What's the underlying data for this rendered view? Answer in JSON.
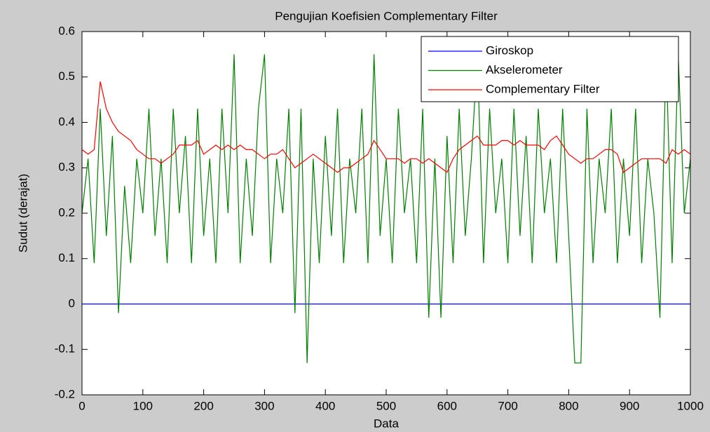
{
  "chart_data": {
    "type": "line",
    "title": "Pengujian Koefisien Complementary Filter",
    "xlabel": "Data",
    "ylabel": "Sudut (derajat)",
    "xlim": [
      0,
      1000
    ],
    "ylim": [
      -0.2,
      0.6
    ],
    "xticks": [
      0,
      100,
      200,
      300,
      400,
      500,
      600,
      700,
      800,
      900,
      1000
    ],
    "yticks": [
      -0.2,
      -0.1,
      0,
      0.1,
      0.2,
      0.3,
      0.4,
      0.5,
      0.6
    ],
    "grid": false,
    "legend": "northeast",
    "x": [
      0,
      10,
      20,
      30,
      40,
      50,
      60,
      70,
      80,
      90,
      100,
      110,
      120,
      130,
      140,
      150,
      160,
      170,
      180,
      190,
      200,
      210,
      220,
      230,
      240,
      250,
      260,
      270,
      280,
      290,
      300,
      310,
      320,
      330,
      340,
      350,
      360,
      370,
      380,
      390,
      400,
      410,
      420,
      430,
      440,
      450,
      460,
      470,
      480,
      490,
      500,
      510,
      520,
      530,
      540,
      550,
      560,
      570,
      580,
      590,
      600,
      610,
      620,
      630,
      640,
      650,
      660,
      670,
      680,
      690,
      700,
      710,
      720,
      730,
      740,
      750,
      760,
      770,
      780,
      790,
      800,
      810,
      820,
      830,
      840,
      850,
      860,
      870,
      880,
      890,
      900,
      910,
      920,
      930,
      940,
      950,
      960,
      970,
      980,
      990,
      1000
    ],
    "series": [
      {
        "name": "Giroskop",
        "color": "#0000ff",
        "x": [
          0,
          1000
        ],
        "values": [
          0,
          0
        ]
      },
      {
        "name": "Akselerometer",
        "color": "#008000",
        "values": [
          0.2,
          0.32,
          0.09,
          0.43,
          0.15,
          0.37,
          -0.02,
          0.26,
          0.09,
          0.32,
          0.2,
          0.43,
          0.15,
          0.32,
          0.09,
          0.43,
          0.2,
          0.37,
          0.09,
          0.43,
          0.15,
          0.32,
          0.09,
          0.43,
          0.2,
          0.55,
          0.09,
          0.32,
          0.15,
          0.43,
          0.55,
          0.09,
          0.32,
          0.2,
          0.43,
          -0.02,
          0.43,
          -0.13,
          0.32,
          0.09,
          0.37,
          0.15,
          0.43,
          0.09,
          0.32,
          0.2,
          0.43,
          0.09,
          0.55,
          0.15,
          0.32,
          0.09,
          0.43,
          0.2,
          0.32,
          0.09,
          0.43,
          -0.03,
          0.32,
          -0.03,
          0.37,
          0.09,
          0.43,
          0.15,
          0.32,
          0.55,
          0.09,
          0.43,
          0.2,
          0.32,
          0.09,
          0.43,
          0.15,
          0.37,
          0.09,
          0.43,
          0.2,
          0.32,
          0.09,
          0.43,
          0.15,
          -0.13,
          -0.13,
          0.43,
          0.09,
          0.32,
          0.2,
          0.43,
          0.09,
          0.32,
          0.15,
          0.43,
          0.09,
          0.32,
          0.2,
          -0.03,
          0.55,
          0.09,
          0.55,
          0.2,
          0.32
        ]
      },
      {
        "name": "Complementary Filter",
        "color": "#ff0000",
        "values": [
          0.34,
          0.33,
          0.34,
          0.49,
          0.43,
          0.4,
          0.38,
          0.37,
          0.36,
          0.34,
          0.33,
          0.32,
          0.32,
          0.31,
          0.32,
          0.33,
          0.35,
          0.35,
          0.35,
          0.36,
          0.33,
          0.34,
          0.35,
          0.34,
          0.35,
          0.34,
          0.35,
          0.34,
          0.34,
          0.33,
          0.32,
          0.33,
          0.33,
          0.34,
          0.32,
          0.3,
          0.31,
          0.32,
          0.33,
          0.32,
          0.31,
          0.3,
          0.29,
          0.3,
          0.3,
          0.31,
          0.32,
          0.33,
          0.36,
          0.34,
          0.32,
          0.32,
          0.32,
          0.31,
          0.32,
          0.32,
          0.31,
          0.32,
          0.31,
          0.3,
          0.29,
          0.32,
          0.34,
          0.35,
          0.36,
          0.37,
          0.35,
          0.35,
          0.35,
          0.36,
          0.36,
          0.35,
          0.36,
          0.35,
          0.35,
          0.35,
          0.34,
          0.36,
          0.37,
          0.35,
          0.33,
          0.32,
          0.31,
          0.32,
          0.32,
          0.33,
          0.34,
          0.34,
          0.33,
          0.29,
          0.3,
          0.31,
          0.32,
          0.32,
          0.32,
          0.32,
          0.31,
          0.34,
          0.33,
          0.34,
          0.33
        ]
      }
    ]
  }
}
